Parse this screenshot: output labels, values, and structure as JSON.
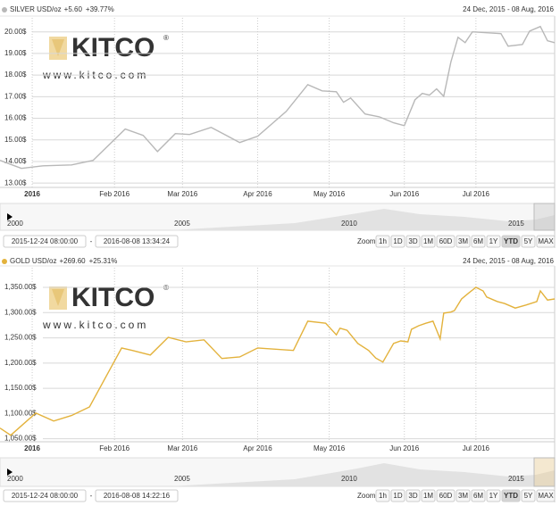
{
  "chart_data": [
    {
      "type": "line",
      "title": "SILVER USD/oz",
      "change": "+5.60",
      "change_pct": "+39.77%",
      "date_range": "24 Dec, 2015 - 08 Aug, 2016",
      "color": "#b8b8b8",
      "grid": true,
      "x": [
        -9,
        -3,
        3,
        11,
        17,
        26,
        31,
        35,
        40,
        44,
        50,
        58,
        63,
        71,
        77,
        81,
        85,
        87,
        89,
        93,
        97,
        101,
        104,
        107,
        109,
        111,
        113,
        115,
        117,
        119,
        121,
        123,
        127,
        131,
        133,
        137,
        139,
        142,
        144,
        146
      ],
      "values": [
        14.05,
        13.68,
        13.8,
        13.84,
        14.05,
        15.5,
        15.21,
        14.46,
        15.29,
        15.25,
        15.58,
        14.88,
        15.17,
        16.32,
        17.56,
        17.27,
        17.23,
        16.74,
        16.94,
        16.2,
        16.07,
        15.79,
        15.66,
        16.86,
        17.15,
        17.07,
        17.36,
        17.02,
        18.6,
        19.75,
        19.5,
        20.0,
        19.96,
        19.92,
        19.34,
        19.42,
        20.04,
        20.25,
        19.59,
        19.5
      ],
      "xlim": [
        -9,
        146
      ],
      "ylim": [
        12.8,
        20.65
      ],
      "xticks": [
        {
          "value": 0,
          "label": "2016"
        },
        {
          "value": 23,
          "label": "Feb 2016"
        },
        {
          "value": 42,
          "label": "Mar 2016"
        },
        {
          "value": 63,
          "label": "Apr 2016"
        },
        {
          "value": 83,
          "label": "May 2016"
        },
        {
          "value": 104,
          "label": "Jun 2016"
        },
        {
          "value": 124,
          "label": "Jul 2016"
        }
      ],
      "yticks": [
        {
          "value": 13,
          "label": "13.00$"
        },
        {
          "value": 14,
          "label": "14.00$"
        },
        {
          "value": 15,
          "label": "15.00$"
        },
        {
          "value": 16,
          "label": "16.00$"
        },
        {
          "value": 17,
          "label": "17.00$"
        },
        {
          "value": 18,
          "label": "18.00$"
        },
        {
          "value": 19,
          "label": "19.00$"
        },
        {
          "value": 20,
          "label": "20.00$"
        }
      ],
      "watermark": {
        "brand": "KITCO",
        "mark": "®",
        "url": "www.kitco.com"
      },
      "navigator_labels": [
        "2000",
        "2005",
        "2010",
        "2015"
      ],
      "from": "2015-12-24 08:00:00",
      "separator": "-",
      "to": "2016-08-08 13:34:24",
      "zoom_label": "Zoom:",
      "zoom_buttons": [
        "1h",
        "1D",
        "3D",
        "1M",
        "60D",
        "3M",
        "6M",
        "1Y",
        "YTD",
        "5Y",
        "MAX"
      ],
      "selected_zoom": "YTD"
    },
    {
      "type": "line",
      "title": "GOLD USD/oz",
      "change": "+269.60",
      "change_pct": "+25.31%",
      "date_range": "24 Dec, 2015 - 08 Aug, 2016",
      "color": "#e3b23c",
      "grid": true,
      "x": [
        -9,
        -6,
        1,
        6,
        11,
        16,
        25,
        28,
        33,
        38,
        43,
        48,
        53,
        58,
        63,
        73,
        77,
        82,
        85,
        86,
        88,
        91,
        94,
        96,
        98,
        101,
        103,
        105,
        106,
        108,
        110,
        112,
        114,
        115,
        117,
        118,
        120,
        122,
        124,
        126,
        127,
        130,
        132,
        135,
        138,
        141,
        142,
        144,
        146
      ],
      "values": [
        1071,
        1057,
        1101,
        1085,
        1096,
        1113,
        1230,
        1225,
        1216,
        1251,
        1242,
        1246,
        1209,
        1212,
        1230,
        1225,
        1283,
        1279,
        1256,
        1269,
        1265,
        1239,
        1225,
        1210,
        1202,
        1239,
        1244,
        1242,
        1267,
        1274,
        1279,
        1283,
        1248,
        1299,
        1301,
        1304,
        1327,
        1339,
        1350,
        1343,
        1331,
        1322,
        1318,
        1309,
        1315,
        1322,
        1343,
        1325,
        1327
      ],
      "xlim": [
        -9,
        146
      ],
      "ylim": [
        1044,
        1389
      ],
      "xticks": [
        {
          "value": 0,
          "label": "2016"
        },
        {
          "value": 23,
          "label": "Feb 2016"
        },
        {
          "value": 42,
          "label": "Mar 2016"
        },
        {
          "value": 63,
          "label": "Apr 2016"
        },
        {
          "value": 83,
          "label": "May 2016"
        },
        {
          "value": 104,
          "label": "Jun 2016"
        },
        {
          "value": 124,
          "label": "Jul 2016"
        }
      ],
      "yticks": [
        {
          "value": 1050,
          "label": "1,050.00$"
        },
        {
          "value": 1100,
          "label": "1,100.00$"
        },
        {
          "value": 1150,
          "label": "1,150.00$"
        },
        {
          "value": 1200,
          "label": "1,200.00$"
        },
        {
          "value": 1250,
          "label": "1,250.00$"
        },
        {
          "value": 1300,
          "label": "1,300.00$"
        },
        {
          "value": 1350,
          "label": "1,350.00$"
        }
      ],
      "watermark": {
        "brand": "KITCO",
        "mark": "®",
        "url": "www.kitco.com"
      },
      "navigator_labels": [
        "2000",
        "2005",
        "2010",
        "2015"
      ],
      "from": "2015-12-24 08:00:00",
      "separator": "-",
      "to": "2016-08-08 14:22:16",
      "zoom_label": "Zoom:",
      "zoom_buttons": [
        "1h",
        "1D",
        "3D",
        "1M",
        "60D",
        "3M",
        "6M",
        "1Y",
        "YTD",
        "5Y",
        "MAX"
      ],
      "selected_zoom": "YTD"
    }
  ]
}
